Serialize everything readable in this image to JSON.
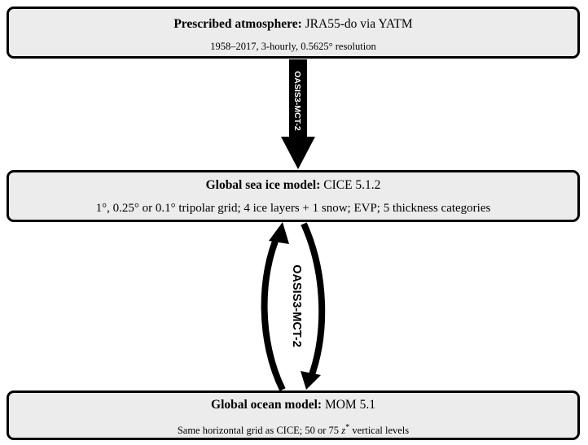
{
  "atmosphere": {
    "label_bold": "Prescribed atmosphere:",
    "label_rest": " JRA55-do via YATM",
    "details": "1958–2017, 3-hourly, 0.5625° resolution"
  },
  "sea_ice": {
    "label_bold": "Global sea ice model:",
    "label_rest": " CICE 5.1.2",
    "details": "1°, 0.25° or 0.1° tripolar grid; 4 ice layers + 1 snow; EVP; 5 thickness categories"
  },
  "ocean": {
    "label_bold": "Global ocean model:",
    "label_rest": " MOM 5.1",
    "details_before": "Same horizontal grid as CICE; 50 or 75 ",
    "details_var": "z",
    "details_sup": "*",
    "details_after": " vertical levels"
  },
  "couplers": {
    "atm_to_ice": "OASIS3-MCT-2",
    "ice_ocean": "OASIS3-MCT-2"
  },
  "colors": {
    "box_fill": "#ececec",
    "box_border": "#000000",
    "arrow": "#000000"
  }
}
